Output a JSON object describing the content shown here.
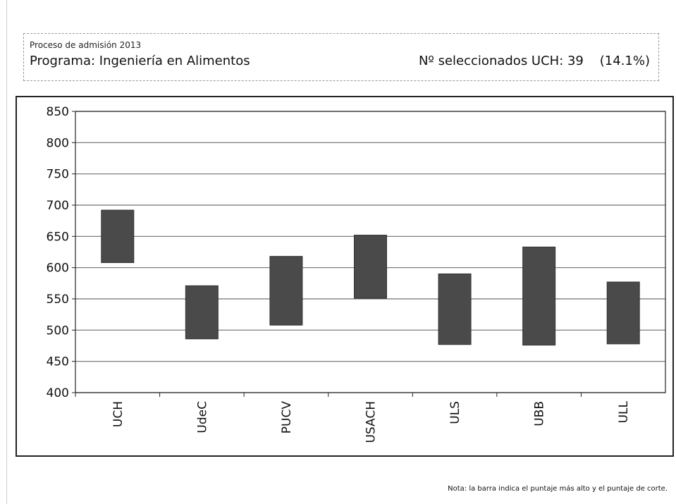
{
  "header": {
    "process": "Proceso de admisión 2013",
    "program": "Programa: Ingeniería en Alimentos",
    "selected": "Nº seleccionados UCH: 39    (14.1%)"
  },
  "footnote": "Nota: la barra indica el puntaje más alto y el puntaje de corte.",
  "colors": {
    "bar": "#4a4a4a",
    "grid": "#6f6f6f",
    "axis": "#222222"
  },
  "chart_data": {
    "type": "bar",
    "subtype": "floating-range",
    "categories": [
      "UCH",
      "UdeC",
      "PUCV",
      "USACH",
      "ULS",
      "UBB",
      "ULL"
    ],
    "series": [
      {
        "low": [
          608,
          486,
          508,
          551,
          477,
          476,
          478
        ],
        "high": [
          692,
          571,
          618,
          652,
          590,
          633,
          577
        ]
      }
    ],
    "ylim": [
      400,
      850
    ],
    "yticks": [
      400,
      450,
      500,
      550,
      600,
      650,
      700,
      750,
      800,
      850
    ],
    "grid": true
  }
}
